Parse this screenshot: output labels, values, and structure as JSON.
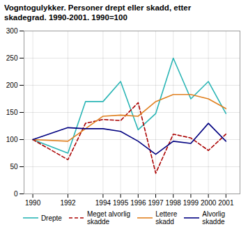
{
  "chart_data": {
    "type": "line",
    "title": "Vogntogulykker. Personer drept eller skadd, etter\nskadegrad. 1990-2001. 1990=100",
    "series": [
      {
        "name": "Drepte",
        "color": "#2ab5b5",
        "line_style": "solid",
        "x": [
          1990,
          1992,
          1993,
          1994,
          1995,
          1996,
          1997,
          1998,
          1999,
          2000,
          2001
        ],
        "values": [
          100,
          75,
          170,
          170,
          207,
          118,
          148,
          250,
          175,
          207,
          148
        ]
      },
      {
        "name": "Meget alvorlig\nskadde",
        "color": "#aa0000",
        "line_style": "dashed",
        "x": [
          1990,
          1992,
          1993,
          1994,
          1995,
          1996,
          1997,
          1998,
          1999,
          2000,
          2001
        ],
        "values": [
          100,
          63,
          130,
          137,
          135,
          168,
          38,
          110,
          103,
          80,
          110
        ]
      },
      {
        "name": "Lettere\nskadd",
        "color": "#e08020",
        "line_style": "solid",
        "x": [
          1990,
          1992,
          1994,
          1995,
          1996,
          1997,
          1998,
          1999,
          2000,
          2001
        ],
        "values": [
          100,
          97,
          143,
          145,
          143,
          170,
          183,
          183,
          175,
          157
        ]
      },
      {
        "name": "Alvorlig\nskadde",
        "color": "#000080",
        "line_style": "solid",
        "x": [
          1990,
          1992,
          1993,
          1994,
          1995,
          1996,
          1997,
          1998,
          1999,
          2000,
          2001
        ],
        "values": [
          100,
          122,
          120,
          120,
          115,
          97,
          73,
          97,
          93,
          130,
          97
        ]
      }
    ],
    "xlim": [
      1989.5,
      2001.8
    ],
    "xticks": [
      1990,
      1992,
      1994,
      1995,
      1996,
      1997,
      1998,
      1999,
      2000,
      2001
    ],
    "ylim": [
      0,
      300
    ],
    "yticks": [
      0,
      50,
      100,
      150,
      200,
      250,
      300
    ],
    "grid": true,
    "legend": "bottom"
  }
}
